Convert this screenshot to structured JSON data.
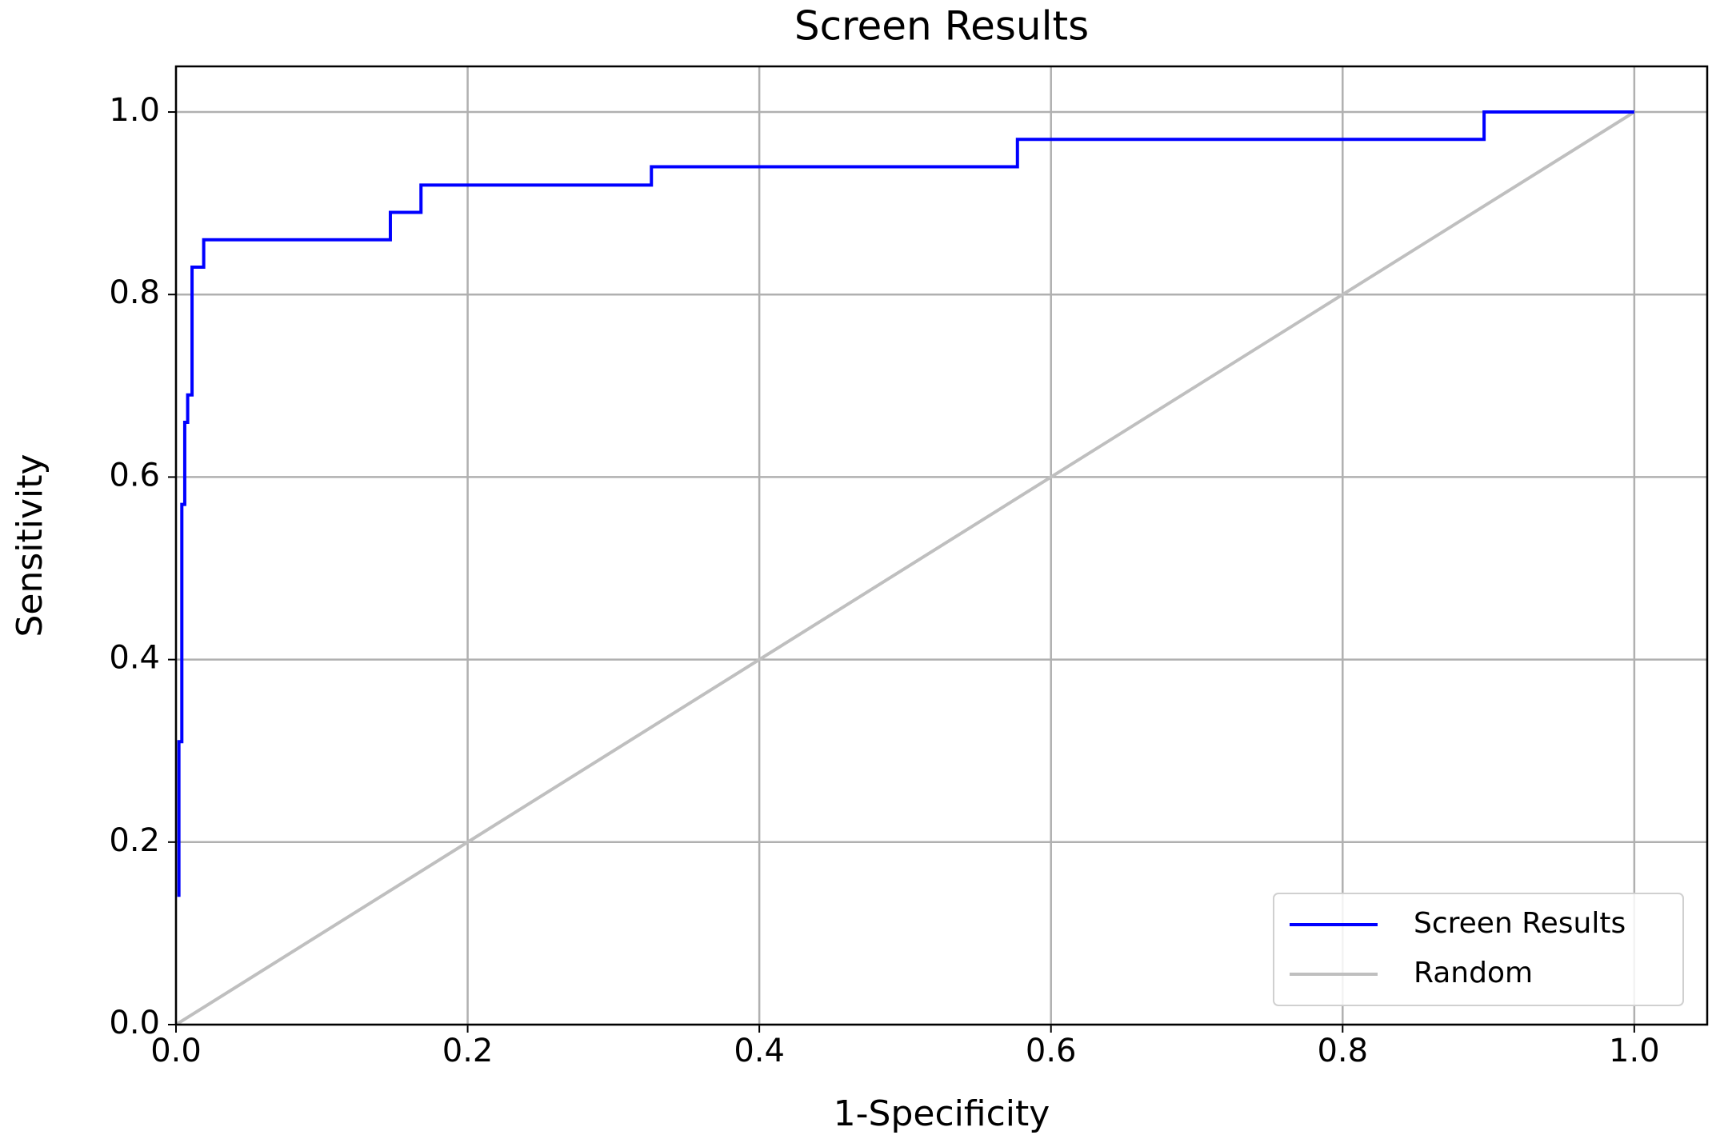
{
  "chart_data": {
    "type": "line",
    "title": "Screen Results",
    "x_label": "1-Specificity",
    "y_label": "Sensitivity",
    "xlim": [
      0,
      1.05
    ],
    "ylim": [
      0,
      1.05
    ],
    "xticks": [
      {
        "value": 0,
        "label": "0.0"
      },
      0.2,
      0.4,
      0.6,
      0.8,
      {
        "value": 1,
        "label": "1.0"
      }
    ],
    "yticks": [
      {
        "value": 0,
        "label": "0.0"
      },
      0.2,
      0.4,
      0.6,
      0.8,
      {
        "value": 1,
        "label": "1.0"
      }
    ],
    "grid": true,
    "legend": "lower right",
    "series": [
      {
        "name": "Screen Results",
        "color": "#0000ff",
        "x": [
          0.002,
          0.002,
          0.004,
          0.004,
          0.006,
          0.006,
          0.008,
          0.008,
          0.011,
          0.011,
          0.019,
          0.019,
          0.147,
          0.147,
          0.168,
          0.168,
          0.326,
          0.326,
          0.577,
          0.577,
          0.897,
          0.897,
          1.0
        ],
        "values": [
          0.14,
          0.31,
          0.31,
          0.57,
          0.57,
          0.66,
          0.66,
          0.69,
          0.69,
          0.83,
          0.83,
          0.86,
          0.86,
          0.89,
          0.89,
          0.92,
          0.92,
          0.94,
          0.94,
          0.97,
          0.97,
          1.0,
          1.0
        ]
      },
      {
        "name": "Random",
        "color": "#bfbfbf",
        "x": [
          0,
          1
        ],
        "values": [
          0,
          1
        ]
      }
    ]
  }
}
